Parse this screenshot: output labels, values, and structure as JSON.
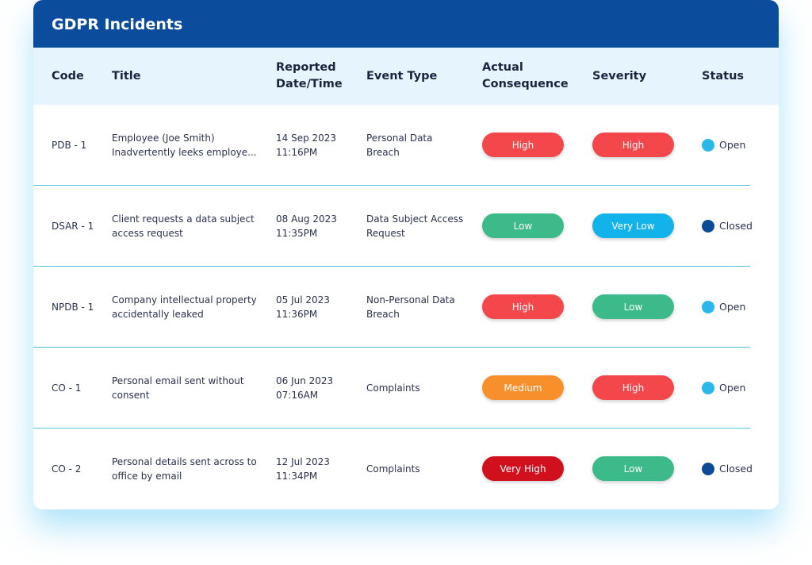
{
  "header": {
    "title": "GDPR Incidents"
  },
  "table": {
    "columns": [
      "Code",
      "Title",
      "Reported Date/Time",
      "Event Type",
      "Actual Consequence",
      "Severity",
      "Status"
    ],
    "rows": [
      {
        "code": "PDB - 1",
        "title": "Employee (Joe Smith) Inadvertently leeks employe...",
        "date": "14 Sep 2023",
        "time": "11:16PM",
        "event": "Personal Data Breach",
        "consequence": "High",
        "severity": "High",
        "status": "Open"
      },
      {
        "code": "DSAR - 1",
        "title": "Client requests a data subject access request",
        "date": "08 Aug 2023",
        "time": "11:35PM",
        "event": "Data Subject Access Request",
        "consequence": "Low",
        "severity": "Very Low",
        "status": "Closed"
      },
      {
        "code": "NPDB - 1",
        "title": "Company intellectual property accidentally leaked",
        "date": "05 Jul 2023",
        "time": "11:36PM",
        "event": "Non-Personal Data Breach",
        "consequence": "High",
        "severity": "Low",
        "status": "Open"
      },
      {
        "code": "CO - 1",
        "title": "Personal email sent without consent",
        "date": "06 Jun 2023",
        "time": "07:16AM",
        "event": "Complaints",
        "consequence": "Medium",
        "severity": "High",
        "status": "Open"
      },
      {
        "code": "CO - 2",
        "title": "Personal details sent across to office by email",
        "date": "12 Jul 2023",
        "time": "11:34PM",
        "event": "Complaints",
        "consequence": "Very High",
        "severity": "Low",
        "status": "Closed"
      }
    ]
  }
}
